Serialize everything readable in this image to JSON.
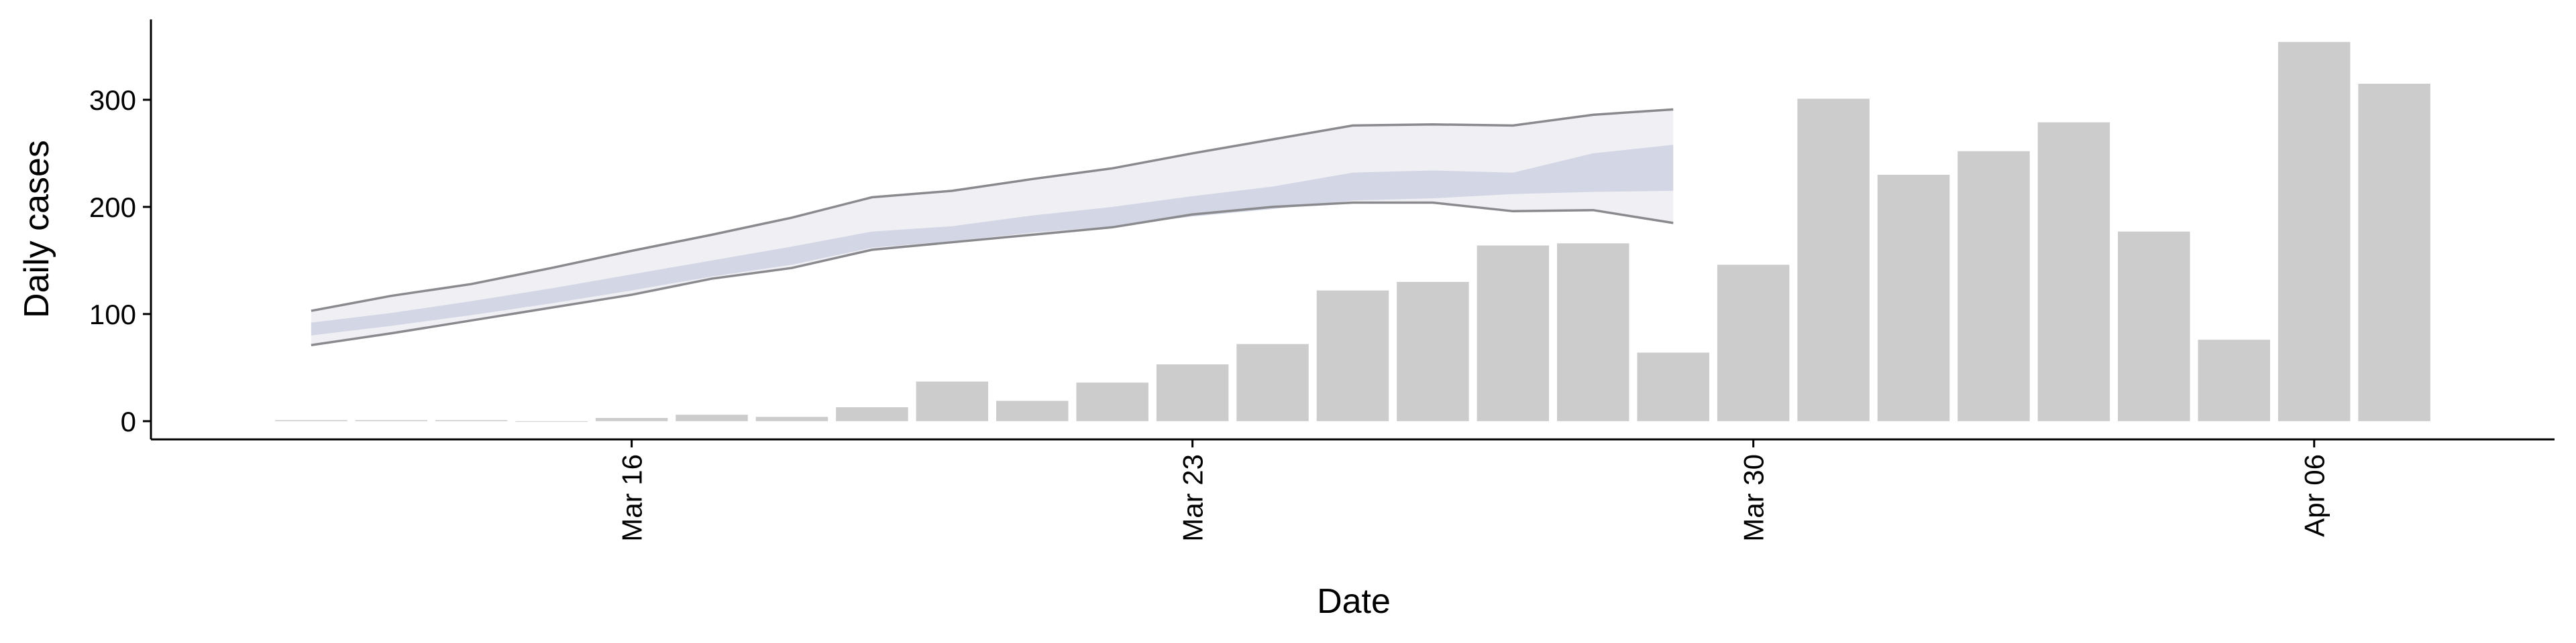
{
  "chart_data": {
    "type": "bar",
    "x_label": "Date",
    "y_label": "Daily cases",
    "x": [
      "Mar 12",
      "Mar 13",
      "Mar 14",
      "Mar 15",
      "Mar 16",
      "Mar 17",
      "Mar 18",
      "Mar 19",
      "Mar 20",
      "Mar 21",
      "Mar 22",
      "Mar 23",
      "Mar 24",
      "Mar 25",
      "Mar 26",
      "Mar 27",
      "Mar 28",
      "Mar 29",
      "Mar 30",
      "Mar 31",
      "Apr 01",
      "Apr 02",
      "Apr 03",
      "Apr 04",
      "Apr 05",
      "Apr 06",
      "Apr 07"
    ],
    "values": [
      1,
      1,
      1,
      0,
      3,
      6,
      4,
      13,
      37,
      19,
      36,
      53,
      72,
      122,
      130,
      164,
      166,
      64,
      146,
      301,
      230,
      252,
      279,
      177,
      76,
      354,
      315
    ],
    "color": "#cccccc",
    "projection": {
      "x": [
        "Mar 12",
        "Mar 13",
        "Mar 14",
        "Mar 15",
        "Mar 16",
        "Mar 17",
        "Mar 18",
        "Mar 19",
        "Mar 20",
        "Mar 21",
        "Mar 22",
        "Mar 23",
        "Mar 24",
        "Mar 25",
        "Mar 26",
        "Mar 27",
        "Mar 28",
        "Mar 29"
      ],
      "outer_lower": [
        71,
        82,
        94,
        106,
        118,
        133,
        143,
        160,
        167,
        174,
        181,
        193,
        200,
        204,
        204,
        196,
        197,
        185
      ],
      "outer_upper": [
        103,
        117,
        128,
        143,
        159,
        174,
        190,
        209,
        215,
        226,
        236,
        250,
        263,
        276,
        277,
        276,
        286,
        291
      ],
      "inner_lower": [
        80,
        89,
        99,
        110,
        122,
        135,
        146,
        162,
        168,
        176,
        182,
        191,
        198,
        206,
        208,
        212,
        214,
        215
      ],
      "inner_upper": [
        92,
        101,
        112,
        124,
        137,
        150,
        163,
        177,
        182,
        192,
        200,
        210,
        219,
        232,
        234,
        232,
        250,
        258
      ],
      "outer_color": "#ededf2",
      "inner_color": "#cdd1e2",
      "line_color": "#8a8a8e"
    },
    "xlim": [
      "Mar 10",
      "Apr 09"
    ],
    "xticks": [
      "Mar 16",
      "Mar 23",
      "Mar 30",
      "Apr 06"
    ],
    "ylim": [
      -17,
      375
    ],
    "yticks": [
      0,
      100,
      200,
      300
    ]
  }
}
